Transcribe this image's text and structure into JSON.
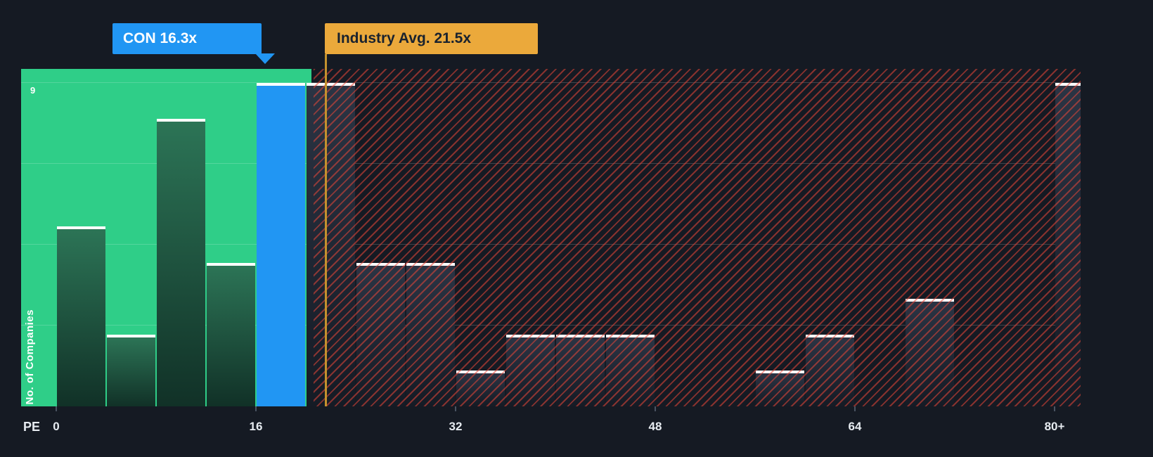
{
  "chart_data": {
    "type": "bar",
    "xlabel": "PE",
    "ylabel": "No. of Companies",
    "ymax": 9,
    "bin_width_pe": 4,
    "x_tick_values": [
      0,
      16,
      32,
      48,
      64,
      80
    ],
    "x_tick_labels": [
      "0",
      "16",
      "32",
      "48",
      "64",
      "80+"
    ],
    "company_marker": {
      "label": "CON 16.3x",
      "name": "CON",
      "pe": 16.3,
      "bin_range": "16-20"
    },
    "industry_average": {
      "label": "Industry Avg. 21.5x",
      "pe": 21.5
    },
    "bins": [
      {
        "range": "0-4",
        "count": 5,
        "region": "below_average"
      },
      {
        "range": "4-8",
        "count": 2,
        "region": "below_average"
      },
      {
        "range": "8-12",
        "count": 8,
        "region": "below_average"
      },
      {
        "range": "12-16",
        "count": 4,
        "region": "below_average"
      },
      {
        "range": "16-20",
        "count": 9,
        "region": "company"
      },
      {
        "range": "20-24",
        "count": 9,
        "region": "above_average"
      },
      {
        "range": "24-28",
        "count": 4,
        "region": "above_average"
      },
      {
        "range": "28-32",
        "count": 4,
        "region": "above_average"
      },
      {
        "range": "32-36",
        "count": 1,
        "region": "above_average"
      },
      {
        "range": "36-40",
        "count": 2,
        "region": "above_average"
      },
      {
        "range": "40-44",
        "count": 2,
        "region": "above_average"
      },
      {
        "range": "44-48",
        "count": 2,
        "region": "above_average"
      },
      {
        "range": "48-52",
        "count": 0,
        "region": "above_average"
      },
      {
        "range": "52-56",
        "count": 0,
        "region": "above_average"
      },
      {
        "range": "56-60",
        "count": 1,
        "region": "above_average"
      },
      {
        "range": "60-64",
        "count": 2,
        "region": "above_average"
      },
      {
        "range": "64-68",
        "count": 0,
        "region": "above_average"
      },
      {
        "range": "68-72",
        "count": 3,
        "region": "above_average"
      },
      {
        "range": "72-76",
        "count": 0,
        "region": "above_average"
      },
      {
        "range": "76-80",
        "count": 0,
        "region": "above_average"
      },
      {
        "range": "80+",
        "count": 9,
        "region": "above_average",
        "half_width": true
      }
    ],
    "legend": "off",
    "grid": "quarter-lines"
  },
  "colors": {
    "background": "#151A23",
    "below_average_zone": "#2FCE88",
    "below_average_bar_top": "#2C7456",
    "below_average_bar_bottom": "#113127",
    "company_bar": "#2196F3",
    "above_average_bar_top": "#2B3444",
    "above_average_bar_bottom": "#151B25",
    "hatch_stripe": "rgba(231,70,56,0.55)",
    "industry_line": "#C3922E",
    "industry_callout_bg": "#EBA93B",
    "industry_callout_text": "#19222E",
    "company_callout_bg": "#2196F3",
    "company_callout_text": "#FFFFFF",
    "bar_cap": "#FFFFFF",
    "gridline": "rgba(255,255,255,0.18)",
    "axis_text": "#E6EBF0"
  }
}
